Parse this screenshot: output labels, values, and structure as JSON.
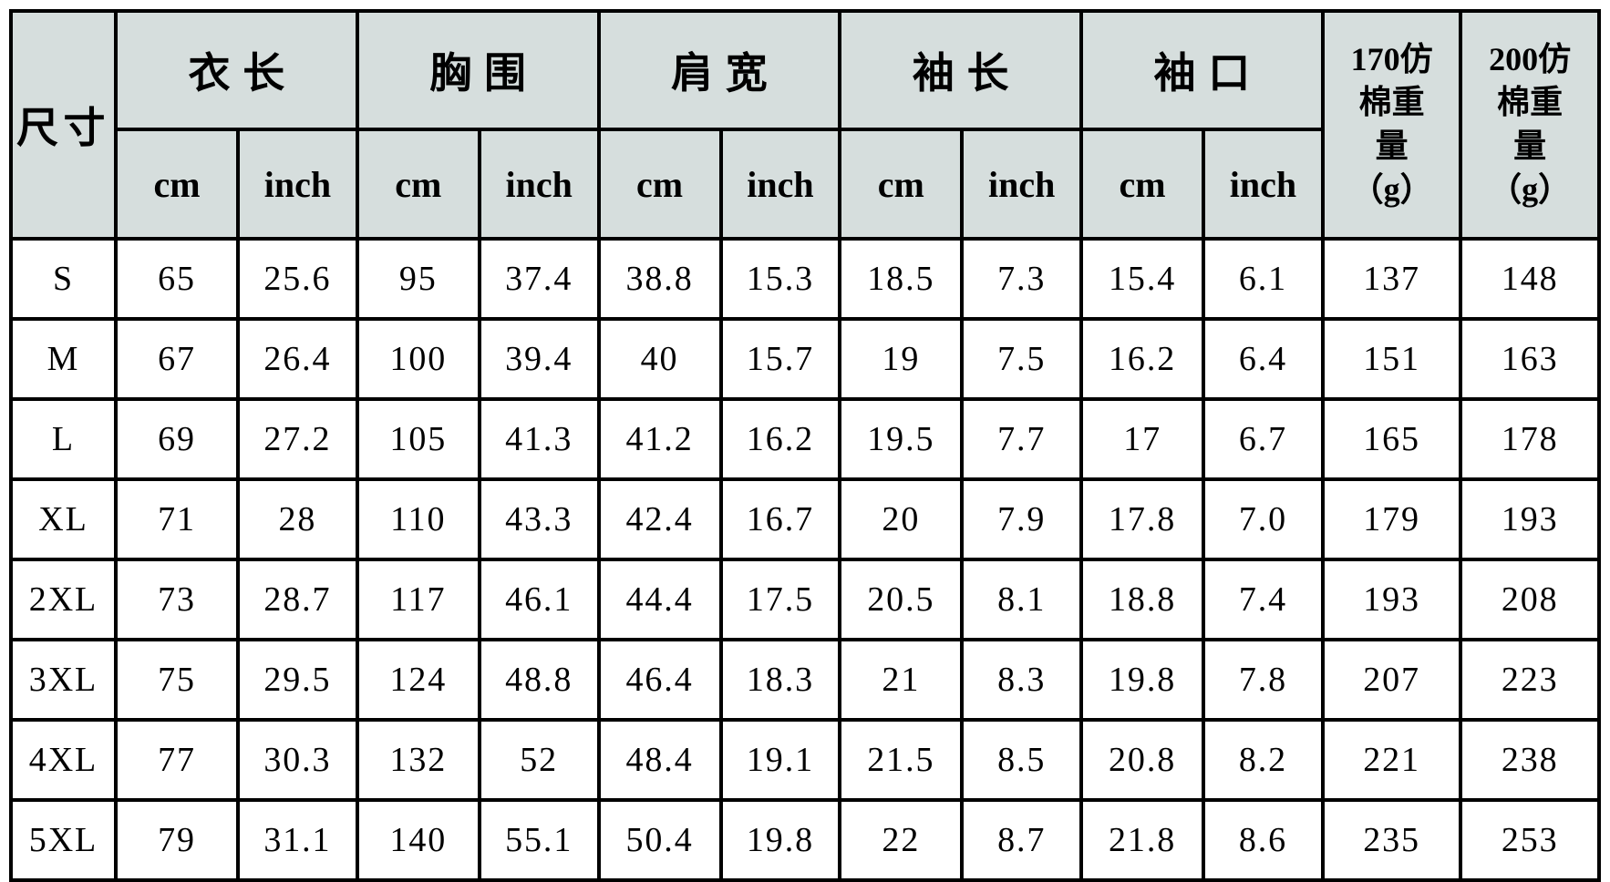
{
  "colors": {
    "header_bg": "#d6dedd",
    "border": "#000000",
    "row_bg": "#ffffff"
  },
  "chart_data": {
    "type": "table",
    "corner_header": "尺寸",
    "column_groups": [
      {
        "label": "衣长",
        "sub": [
          "cm",
          "inch"
        ]
      },
      {
        "label": "胸围",
        "sub": [
          "cm",
          "inch"
        ]
      },
      {
        "label": "肩宽",
        "sub": [
          "cm",
          "inch"
        ]
      },
      {
        "label": "袖长",
        "sub": [
          "cm",
          "inch"
        ]
      },
      {
        "label": "袖口",
        "sub": [
          "cm",
          "inch"
        ]
      }
    ],
    "weight_columns": [
      "170仿\n棉重\n量\n（g）",
      "200仿\n棉重\n量\n（g）"
    ],
    "columns_flat": [
      "尺寸",
      "衣长 cm",
      "衣长 inch",
      "胸围 cm",
      "胸围 inch",
      "肩宽 cm",
      "肩宽 inch",
      "袖长 cm",
      "袖长 inch",
      "袖口 cm",
      "袖口 inch",
      "170仿棉重量（g）",
      "200仿棉重量（g）"
    ],
    "rows": [
      {
        "size": "S",
        "values": [
          "65",
          "25.6",
          "95",
          "37.4",
          "38.8",
          "15.3",
          "18.5",
          "7.3",
          "15.4",
          "6.1",
          "137",
          "148"
        ]
      },
      {
        "size": "M",
        "values": [
          "67",
          "26.4",
          "100",
          "39.4",
          "40",
          "15.7",
          "19",
          "7.5",
          "16.2",
          "6.4",
          "151",
          "163"
        ]
      },
      {
        "size": "L",
        "values": [
          "69",
          "27.2",
          "105",
          "41.3",
          "41.2",
          "16.2",
          "19.5",
          "7.7",
          "17",
          "6.7",
          "165",
          "178"
        ]
      },
      {
        "size": "XL",
        "values": [
          "71",
          "28",
          "110",
          "43.3",
          "42.4",
          "16.7",
          "20",
          "7.9",
          "17.8",
          "7.0",
          "179",
          "193"
        ]
      },
      {
        "size": "2XL",
        "values": [
          "73",
          "28.7",
          "117",
          "46.1",
          "44.4",
          "17.5",
          "20.5",
          "8.1",
          "18.8",
          "7.4",
          "193",
          "208"
        ]
      },
      {
        "size": "3XL",
        "values": [
          "75",
          "29.5",
          "124",
          "48.8",
          "46.4",
          "18.3",
          "21",
          "8.3",
          "19.8",
          "7.8",
          "207",
          "223"
        ]
      },
      {
        "size": "4XL",
        "values": [
          "77",
          "30.3",
          "132",
          "52",
          "48.4",
          "19.1",
          "21.5",
          "8.5",
          "20.8",
          "8.2",
          "221",
          "238"
        ]
      },
      {
        "size": "5XL",
        "values": [
          "79",
          "31.1",
          "140",
          "55.1",
          "50.4",
          "19.8",
          "22",
          "8.7",
          "21.8",
          "8.6",
          "235",
          "253"
        ]
      }
    ]
  }
}
